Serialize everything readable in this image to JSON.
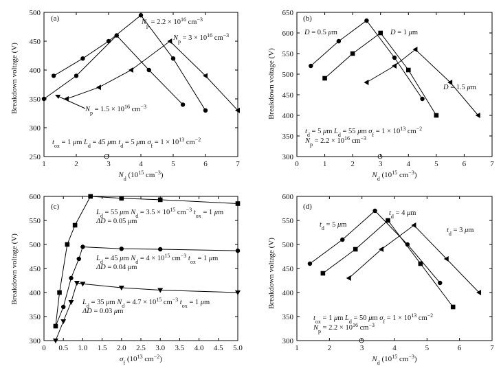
{
  "chart_data": [
    {
      "type": "line",
      "panel_label": "(a)",
      "xlabel": "N_d (10^15 cm^-3)",
      "xlabel_parts": [
        "N",
        "d",
        "(10",
        "15",
        " cm",
        "−3",
        ")"
      ],
      "ylabel": "Breakdown voltage (V)",
      "xlim": [
        1,
        7
      ],
      "ylim": [
        250,
        500
      ],
      "xticks": [
        1,
        2,
        3,
        4,
        5,
        6,
        7
      ],
      "yticks": [
        250,
        300,
        350,
        400,
        450,
        500
      ],
      "series": [
        {
          "name": "Np = 2.2 × 10^16 cm^-3",
          "marker": "circle",
          "x": [
            1.3,
            2.2,
            3.0,
            4.0,
            5.0,
            6.0
          ],
          "y": [
            390,
            420,
            450,
            495,
            420,
            330
          ]
        },
        {
          "name": "Np = 3 × 10^16 cm^-3",
          "marker": "circle",
          "x": [
            1.0,
            2.0,
            3.25,
            4.25,
            5.3
          ],
          "y": [
            350,
            390,
            460,
            400,
            340
          ]
        },
        {
          "name": "Np = 1.5 × 10^16 cm^-3",
          "marker": "triangle-left",
          "x": [
            1.7,
            2.7,
            3.7,
            4.9,
            6.0,
            7.0
          ],
          "y": [
            350,
            370,
            400,
            450,
            390,
            330
          ]
        }
      ],
      "annotations": [
        {
          "text": "tox = 1 μm  Ld = 45 μm td = 5 μm σf = 1 × 10^13 cm^-2"
        }
      ]
    },
    {
      "type": "line",
      "panel_label": "(b)",
      "xlabel": "N_d (10^15 cm^-3)",
      "ylabel": "Breakdown voltage (V)",
      "xlim": [
        0,
        7
      ],
      "ylim": [
        300,
        650
      ],
      "xticks": [
        0,
        1,
        2,
        3,
        4,
        5,
        6,
        7
      ],
      "yticks": [
        300,
        350,
        400,
        450,
        500,
        550,
        600,
        650
      ],
      "series": [
        {
          "name": "D = 0.5 μm",
          "marker": "circle",
          "x": [
            0.5,
            1.5,
            2.5,
            3.5,
            4.5
          ],
          "y": [
            520,
            580,
            630,
            540,
            440
          ]
        },
        {
          "name": "D = 1 μm",
          "marker": "square",
          "x": [
            1.0,
            2.0,
            3.0,
            4.0,
            5.0
          ],
          "y": [
            490,
            550,
            600,
            510,
            400
          ]
        },
        {
          "name": "D = 1.5 μm",
          "marker": "triangle-left",
          "x": [
            2.5,
            3.5,
            4.25,
            5.5,
            6.5
          ],
          "y": [
            480,
            520,
            560,
            480,
            400
          ]
        }
      ],
      "annotations": [
        {
          "text": "td = 5 μm  Ld = 55 μm σf = 1 × 10^13 cm^-2"
        },
        {
          "text": "Np = 2.2 × 10^16 cm^-3"
        }
      ]
    },
    {
      "type": "line",
      "panel_label": "(c)",
      "xlabel": "σ_f (10^13 cm^-2)",
      "ylabel": "Breakdown voltage (V)",
      "xlim": [
        0,
        5
      ],
      "ylim": [
        300,
        600
      ],
      "xticks": [
        0,
        0.5,
        1.0,
        1.5,
        2.0,
        2.5,
        3.0,
        3.5,
        4.0,
        4.5,
        5.0
      ],
      "xticklabels": [
        "0",
        "0.5",
        "1.0",
        "1.5",
        "2.0",
        "2.5",
        "3.0",
        "3.5",
        "4.0",
        "4.5",
        "5.0"
      ],
      "yticks": [
        300,
        350,
        400,
        450,
        500,
        550,
        600
      ],
      "series": [
        {
          "name": "Ld = 55 μm Nd = 3.5 × 10^15 cm^-3 tox = 1 μm ΔD = 0.05 μm",
          "marker": "square",
          "x": [
            0.3,
            0.4,
            0.6,
            0.8,
            1.2,
            2.0,
            3.0,
            5.0
          ],
          "y": [
            330,
            400,
            500,
            540,
            600,
            596,
            593,
            585
          ]
        },
        {
          "name": "Ld = 45 μm Nd = 4 × 10^15 cm^-3 tox = 1 μm ΔD = 0.04 μm",
          "marker": "circle",
          "x": [
            0.3,
            0.5,
            0.7,
            0.9,
            1.0,
            2.0,
            3.0,
            5.0
          ],
          "y": [
            330,
            370,
            430,
            470,
            495,
            491,
            490,
            487
          ]
        },
        {
          "name": "Ld = 35 μm Nd = 4.7 × 10^15 cm^-3 tox = 1 μm ΔD = 0.03 μm",
          "marker": "triangle-down",
          "x": [
            0.3,
            0.5,
            0.7,
            0.85,
            1.0,
            2.0,
            3.0,
            5.0
          ],
          "y": [
            300,
            340,
            380,
            420,
            418,
            410,
            405,
            400
          ]
        }
      ]
    },
    {
      "type": "line",
      "panel_label": "(d)",
      "xlabel": "N_d (10^15 cm^-3)",
      "ylabel": "Breakdown voltage (V)",
      "xlim": [
        1,
        7
      ],
      "ylim": [
        300,
        600
      ],
      "xticks": [
        1,
        2,
        3,
        4,
        5,
        6,
        7
      ],
      "yticks": [
        300,
        350,
        400,
        450,
        500,
        550,
        600
      ],
      "series": [
        {
          "name": "td = 5 μm",
          "marker": "circle",
          "x": [
            1.4,
            2.4,
            3.4,
            4.4,
            5.4
          ],
          "y": [
            460,
            510,
            570,
            500,
            420
          ]
        },
        {
          "name": "td = 4 μm",
          "marker": "square",
          "x": [
            1.8,
            2.8,
            3.8,
            4.8,
            5.8
          ],
          "y": [
            440,
            490,
            550,
            460,
            370
          ]
        },
        {
          "name": "td = 3 μm",
          "marker": "triangle-left",
          "x": [
            2.6,
            3.6,
            4.6,
            5.6,
            6.6
          ],
          "y": [
            430,
            490,
            540,
            470,
            400
          ]
        }
      ],
      "annotations": [
        {
          "text": "tox = 1 μm  Ld = 50 μm σf = 1 × 10^13 cm^-2"
        },
        {
          "text": "Np = 2.2 × 10^16 cm^-3"
        }
      ]
    }
  ]
}
